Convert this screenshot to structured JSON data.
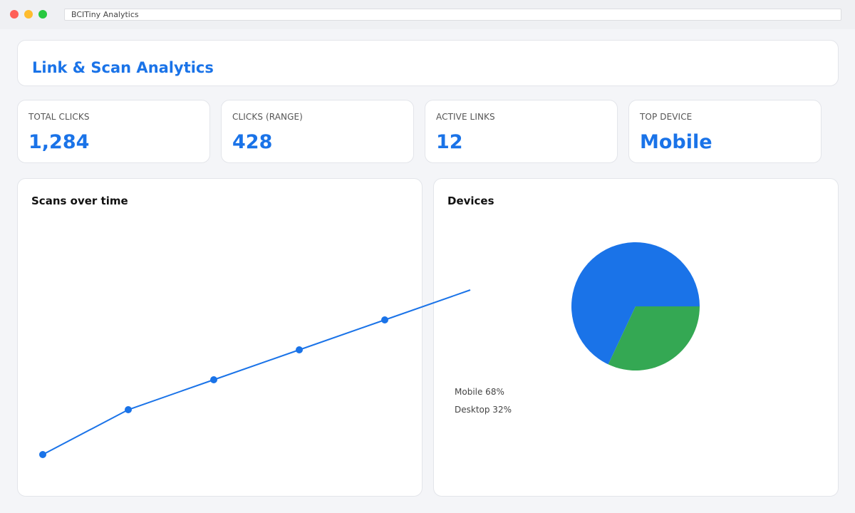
{
  "window": {
    "address": "BCITiny Analytics"
  },
  "header": {
    "title": "Link & Scan Analytics"
  },
  "stats": [
    {
      "label": "TOTAL CLICKS",
      "value": "1,284"
    },
    {
      "label": "CLICKS (RANGE)",
      "value": "428"
    },
    {
      "label": "ACTIVE LINKS",
      "value": "12"
    },
    {
      "label": "TOP DEVICE",
      "value": "Mobile"
    }
  ],
  "panels": {
    "scans_title": "Scans over time",
    "devices_title": "Devices"
  },
  "colors": {
    "accent": "#1a73e8",
    "mobile": "#1a73e8",
    "desktop": "#34a853"
  },
  "chart_data": [
    {
      "type": "line",
      "title": "Scans over time",
      "x": [
        1,
        2,
        3,
        4,
        5,
        6
      ],
      "series": [
        {
          "values": [
            10,
            25,
            35,
            45,
            55,
            65
          ]
        }
      ],
      "ylim": [
        0,
        100
      ],
      "grid": false
    },
    {
      "type": "pie",
      "title": "Devices",
      "categories": [
        "Mobile",
        "Desktop"
      ],
      "values": [
        68,
        32
      ],
      "legend": [
        "Mobile 68%",
        "Desktop 32%"
      ]
    }
  ]
}
